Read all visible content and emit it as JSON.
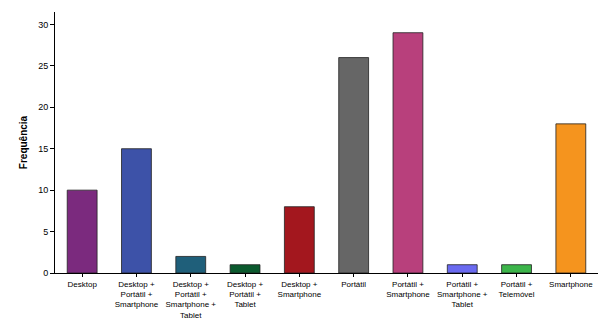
{
  "chart_data": {
    "type": "bar",
    "y_label": "Frequência",
    "categories": [
      "Desktop",
      "Desktop + Portátil + Smartphone",
      "Desktop + Portátil + Smartphone + Tablet",
      "Desktop + Portátil + Tablet",
      "Desktop + Smartphone",
      "Portátil",
      "Portátil + Smartphone",
      "Portátil + Smartphone + Tablet",
      "Portátil + Telemóvel",
      "Smartphone"
    ],
    "values": [
      10,
      15,
      2,
      1,
      8,
      26,
      29,
      1,
      1,
      18
    ],
    "colors": [
      "#7b2a7e",
      "#3d52a8",
      "#1f5f7a",
      "#0b5a2e",
      "#a3171e",
      "#666666",
      "#b8407c",
      "#6a6af0",
      "#3cb54a",
      "#f5941e"
    ],
    "ylim": [
      0,
      31.5
    ],
    "yticks": [
      0,
      5,
      10,
      15,
      20,
      25,
      30
    ],
    "grid": false
  }
}
